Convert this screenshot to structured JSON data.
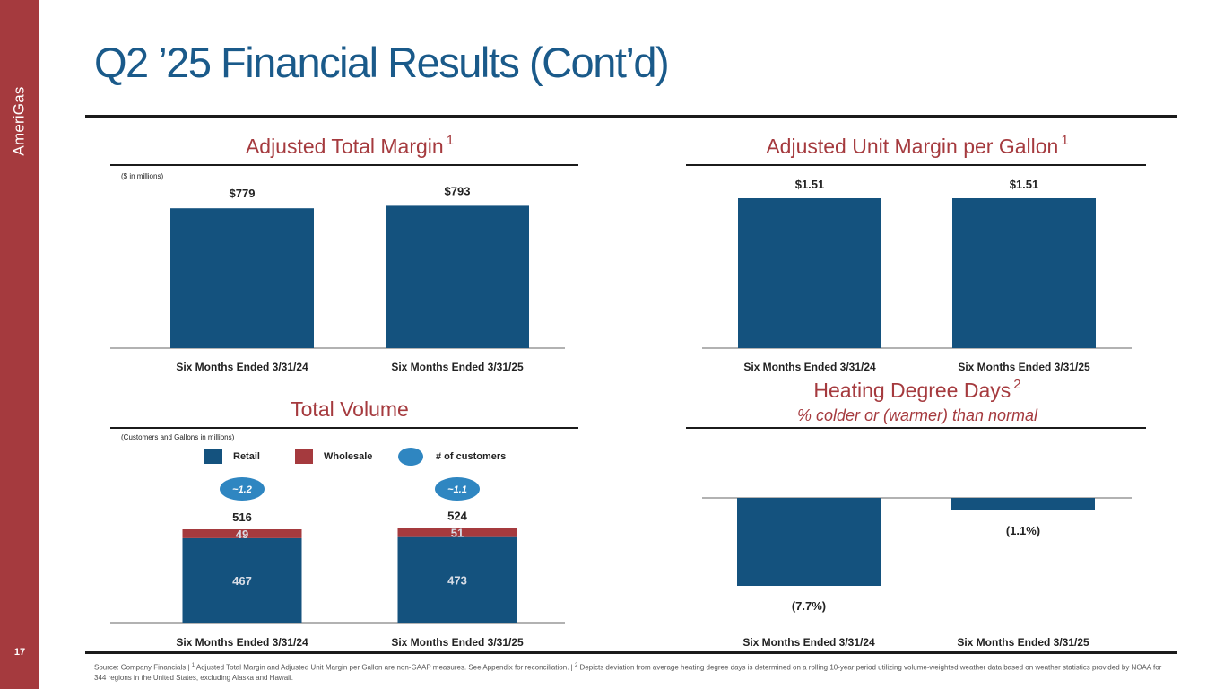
{
  "brand": "AmeriGas",
  "page_number": "17",
  "title": "Q2 ’25 Financial Results (Cont’d)",
  "colors": {
    "sidebar": "#a53a3e",
    "title": "#1a5a8a",
    "bar": "#14527e",
    "wholesale": "#a53a3e",
    "oval": "#2f86c1"
  },
  "legend": {
    "retail": "Retail",
    "wholesale": "Wholesale",
    "customers": "# of customers"
  },
  "charts": {
    "margin": {
      "title": "Adjusted Total Margin",
      "sup": "1",
      "unit": "($ in millions)"
    },
    "unit_margin": {
      "title": "Adjusted Unit Margin per Gallon",
      "sup": "1"
    },
    "volume": {
      "title": "Total Volume",
      "unit": "(Customers and Gallons in millions)"
    },
    "hdd": {
      "title": "Heating Degree Days",
      "sup": "2",
      "subtitle": "% colder or (warmer) than normal"
    }
  },
  "footnote": {
    "source": "Source: Company Financials | ",
    "sup1": "1",
    "text1": " Adjusted Total Margin and Adjusted Unit Margin per Gallon are non-GAAP measures. See Appendix for reconciliation. | ",
    "sup2": "2",
    "text2": " Depicts deviation from average heating degree days is determined on a rolling 10-year period utilizing volume-weighted weather data based on weather statistics provided by NOAA for 344 regions in the United States, excluding Alaska and Hawaii."
  },
  "chart_data": [
    {
      "type": "bar",
      "title": "Adjusted Total Margin",
      "unit": "($ in millions)",
      "categories": [
        "Six Months Ended 3/31/24",
        "Six Months Ended 3/31/25"
      ],
      "values": [
        779,
        793
      ],
      "labels": [
        "$779",
        "$793"
      ],
      "ylim": [
        0,
        830
      ]
    },
    {
      "type": "bar",
      "title": "Adjusted Unit Margin per Gallon",
      "categories": [
        "Six Months Ended 3/31/24",
        "Six Months Ended 3/31/25"
      ],
      "values": [
        1.51,
        1.51
      ],
      "labels": [
        "$1.51",
        "$1.51"
      ],
      "ylim": [
        0,
        1.51
      ]
    },
    {
      "type": "bar",
      "stacked": true,
      "title": "Total Volume",
      "unit": "(Customers and Gallons in millions)",
      "categories": [
        "Six Months Ended 3/31/24",
        "Six Months Ended 3/31/25"
      ],
      "series": [
        {
          "name": "Retail",
          "values": [
            467,
            473
          ],
          "labels": [
            "467",
            "473"
          ]
        },
        {
          "name": "Wholesale",
          "values": [
            49,
            51
          ],
          "labels": [
            "49",
            "51"
          ]
        }
      ],
      "totals": [
        516,
        524
      ],
      "total_labels": [
        "516",
        "524"
      ],
      "customers": [
        "~1.2",
        "~1.1"
      ],
      "ylim": [
        0,
        516
      ]
    },
    {
      "type": "bar",
      "title": "Heating Degree Days",
      "subtitle": "% colder or (warmer) than normal",
      "categories": [
        "Six Months Ended 3/31/24",
        "Six Months Ended 3/31/25"
      ],
      "values": [
        -7.7,
        -1.1
      ],
      "labels": [
        "(7.7%)",
        "(1.1%)"
      ],
      "ylim": [
        -7.7,
        0
      ]
    }
  ]
}
